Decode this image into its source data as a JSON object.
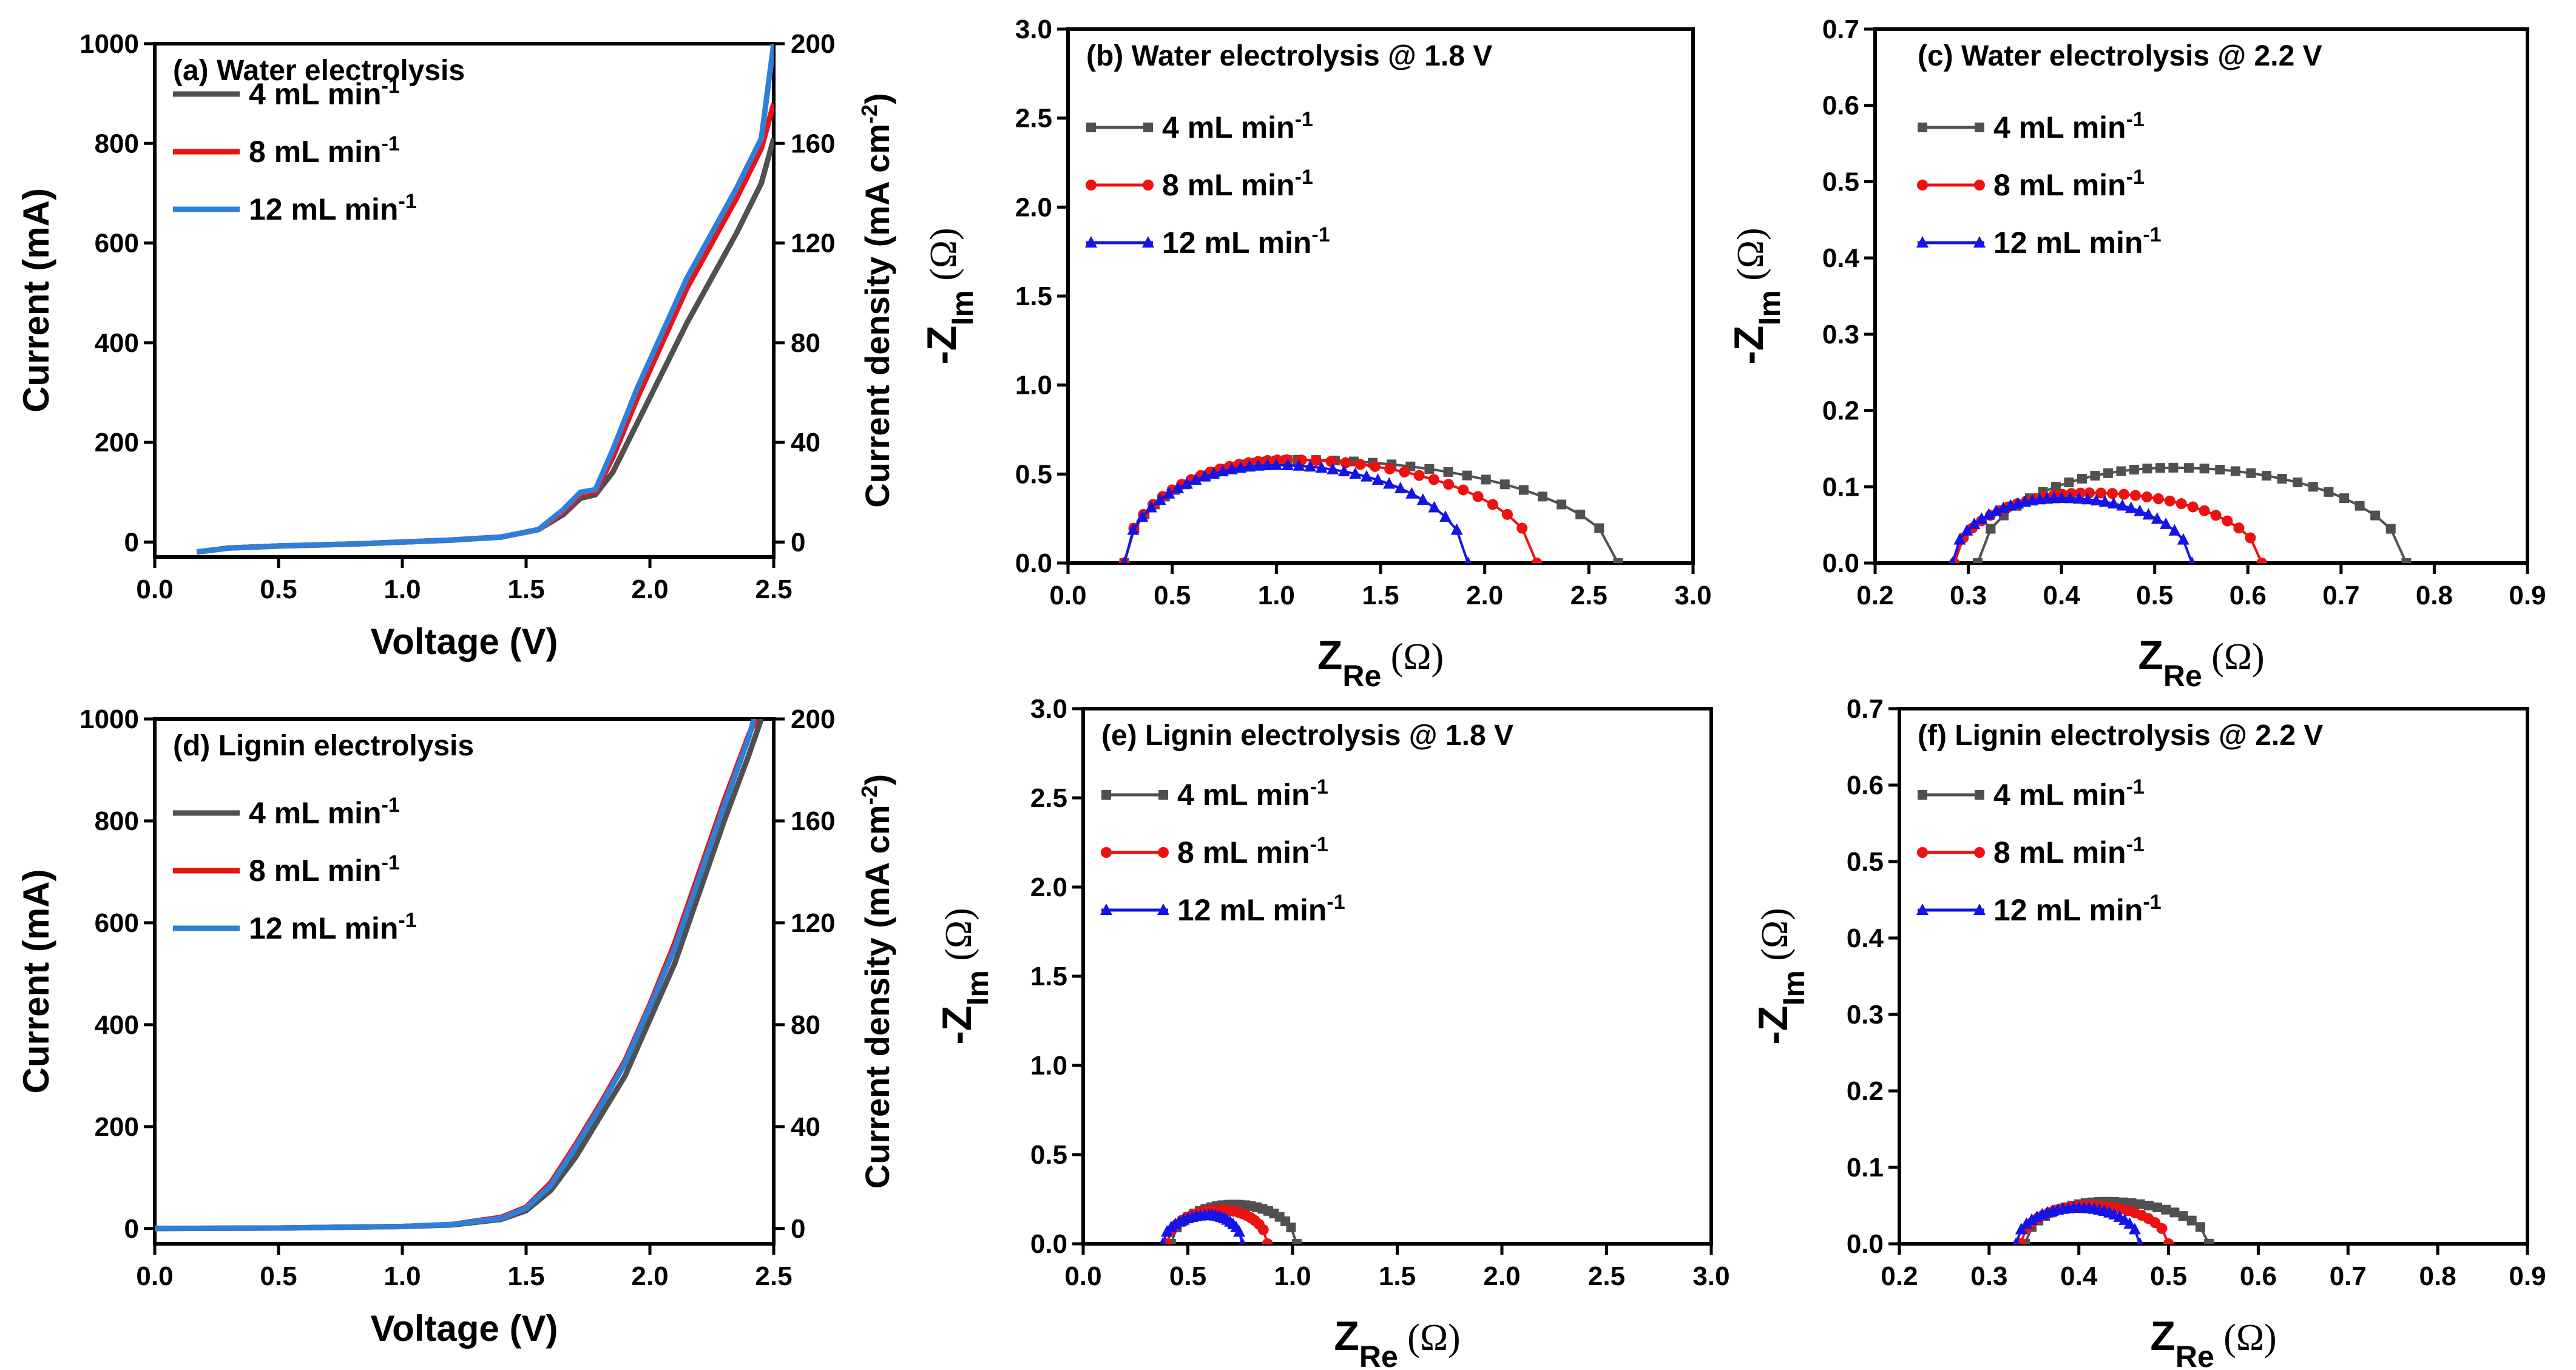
{
  "colors": {
    "four": "#505050",
    "eight": "#ee1111",
    "twelve_lsv": "#2f7fd8",
    "twelve_eis": "#1414e6"
  },
  "legend_units": {
    "base": "mL min",
    "sup": "-1"
  },
  "chart_data": [
    {
      "id": "a",
      "type": "line",
      "title": "(a) Water electrolysis",
      "xlabel": "Voltage (V)",
      "ylabel": "Current (mA)",
      "y2label_base": "Current density (mA cm",
      "y2label_sup": "-2",
      "y2label_end": ")",
      "xlim": [
        0,
        2.5
      ],
      "ylim": [
        -30,
        1000
      ],
      "y2lim": [
        -6,
        200
      ],
      "xticks": [
        "0.0",
        "0.5",
        "1.0",
        "1.5",
        "2.0",
        "2.5"
      ],
      "yticks": [
        "0",
        "200",
        "400",
        "600",
        "800",
        "1000"
      ],
      "y2ticks": [
        "0",
        "40",
        "80",
        "120",
        "160",
        "200"
      ],
      "series": [
        {
          "name": "4 mL min",
          "x": [
            0.17,
            0.3,
            0.5,
            0.8,
            1.0,
            1.2,
            1.4,
            1.55,
            1.65,
            1.72,
            1.78,
            1.85,
            1.95,
            2.05,
            2.15,
            2.25,
            2.35,
            2.45,
            2.5
          ],
          "y": [
            -20,
            -12,
            -8,
            -4,
            0,
            4,
            10,
            25,
            55,
            88,
            95,
            140,
            240,
            340,
            440,
            530,
            620,
            720,
            810
          ]
        },
        {
          "name": "8 mL min",
          "x": [
            0.17,
            0.3,
            0.5,
            0.8,
            1.0,
            1.2,
            1.4,
            1.55,
            1.65,
            1.72,
            1.78,
            1.85,
            1.95,
            2.05,
            2.15,
            2.25,
            2.35,
            2.45,
            2.5
          ],
          "y": [
            -20,
            -12,
            -8,
            -4,
            0,
            4,
            10,
            25,
            60,
            95,
            100,
            170,
            290,
            400,
            510,
            600,
            690,
            790,
            880
          ]
        },
        {
          "name": "12 mL min",
          "x": [
            0.17,
            0.3,
            0.5,
            0.8,
            1.0,
            1.2,
            1.4,
            1.55,
            1.65,
            1.72,
            1.78,
            1.85,
            1.95,
            2.05,
            2.15,
            2.25,
            2.35,
            2.45,
            2.5
          ],
          "y": [
            -20,
            -12,
            -8,
            -4,
            0,
            4,
            10,
            25,
            65,
            100,
            105,
            185,
            310,
            420,
            530,
            620,
            710,
            810,
            1000
          ]
        }
      ]
    },
    {
      "id": "b",
      "type": "scatter",
      "title": "(b) Water electrolysis @ 1.8 V",
      "xlabel_base": "Z",
      "xlabel_sub": "Re",
      "ylabel_base": "-Z",
      "ylabel_sub": "Im",
      "unit": "(Ω)",
      "xlim": [
        0,
        3.0
      ],
      "ylim": [
        0,
        3.0
      ],
      "xticks": [
        "0.0",
        "0.5",
        "1.0",
        "1.5",
        "2.0",
        "2.5",
        "3.0"
      ],
      "yticks": [
        "0.0",
        "0.5",
        "1.0",
        "1.5",
        "2.0",
        "2.5",
        "3.0"
      ],
      "series": [
        {
          "name": "4 mL min",
          "marker": "square",
          "r0": 0.27,
          "r1": 2.64,
          "peak": 0.58,
          "peak_x": 1.1,
          "n": 34
        },
        {
          "name": "8 mL min",
          "marker": "circle",
          "r0": 0.27,
          "r1": 2.25,
          "peak": 0.58,
          "peak_x": 1.05,
          "n": 34
        },
        {
          "name": "12 mL min",
          "marker": "triangle",
          "r0": 0.27,
          "r1": 1.92,
          "peak": 0.55,
          "peak_x": 1.0,
          "n": 34
        }
      ]
    },
    {
      "id": "c",
      "type": "scatter",
      "title": "(c) Water electrolysis @ 2.2 V",
      "xlabel_base": "Z",
      "xlabel_sub": "Re",
      "ylabel_base": "-Z",
      "ylabel_sub": "Im",
      "unit": "(Ω)",
      "xlim": [
        0.2,
        0.9
      ],
      "ylim": [
        0,
        0.7
      ],
      "xticks": [
        "0.2",
        "0.3",
        "0.4",
        "0.5",
        "0.6",
        "0.7",
        "0.8",
        "0.9"
      ],
      "yticks": [
        "0.0",
        "0.1",
        "0.2",
        "0.3",
        "0.4",
        "0.5",
        "0.6",
        "0.7"
      ],
      "series": [
        {
          "name": "4 mL min",
          "marker": "square",
          "r0": 0.31,
          "r1": 0.77,
          "peak": 0.125,
          "peak_x": 0.52,
          "n": 30
        },
        {
          "name": "8 mL min",
          "marker": "circle",
          "r0": 0.285,
          "r1": 0.615,
          "peak": 0.092,
          "peak_x": 0.43,
          "n": 30
        },
        {
          "name": "12 mL min",
          "marker": "triangle",
          "r0": 0.283,
          "r1": 0.54,
          "peak": 0.085,
          "peak_x": 0.4,
          "n": 30
        }
      ]
    },
    {
      "id": "d",
      "type": "line",
      "title": "(d) Lignin electrolysis",
      "xlabel": "Voltage (V)",
      "ylabel": "Current (mA)",
      "y2label_base": "Current density (mA cm",
      "y2label_sup": "-2",
      "y2label_end": ")",
      "xlim": [
        0,
        2.5
      ],
      "ylim": [
        -30,
        1000
      ],
      "y2lim": [
        -6,
        200
      ],
      "xticks": [
        "0.0",
        "0.5",
        "1.0",
        "1.5",
        "2.0",
        "2.5"
      ],
      "yticks": [
        "0",
        "200",
        "400",
        "600",
        "800",
        "1000"
      ],
      "y2ticks": [
        "0",
        "40",
        "80",
        "120",
        "160",
        "200"
      ],
      "series": [
        {
          "name": "4 mL min",
          "x": [
            0.0,
            0.5,
            1.0,
            1.2,
            1.4,
            1.5,
            1.6,
            1.7,
            1.8,
            1.9,
            2.0,
            2.1,
            2.2,
            2.3,
            2.4,
            2.45
          ],
          "y": [
            0,
            1,
            4,
            7,
            18,
            35,
            75,
            140,
            220,
            300,
            410,
            520,
            660,
            800,
            930,
            1000
          ]
        },
        {
          "name": "8 mL min",
          "x": [
            0.0,
            0.5,
            1.0,
            1.2,
            1.4,
            1.5,
            1.6,
            1.7,
            1.8,
            1.9,
            2.0,
            2.1,
            2.2,
            2.3,
            2.4,
            2.43
          ],
          "y": [
            0,
            1,
            4,
            8,
            22,
            42,
            90,
            165,
            245,
            330,
            440,
            560,
            700,
            840,
            970,
            1000
          ]
        },
        {
          "name": "12 mL min",
          "x": [
            0.0,
            0.5,
            1.0,
            1.2,
            1.4,
            1.5,
            1.6,
            1.7,
            1.8,
            1.9,
            2.0,
            2.1,
            2.2,
            2.3,
            2.4,
            2.42
          ],
          "y": [
            0,
            1,
            4,
            8,
            20,
            40,
            85,
            160,
            240,
            325,
            435,
            550,
            690,
            830,
            965,
            1000
          ]
        }
      ]
    },
    {
      "id": "e",
      "type": "scatter",
      "title": "(e) Lignin electrolysis @ 1.8 V",
      "xlabel_base": "Z",
      "xlabel_sub": "Re",
      "ylabel_base": "-Z",
      "ylabel_sub": "Im",
      "unit": "(Ω)",
      "xlim": [
        0,
        3.0
      ],
      "ylim": [
        0,
        3.0
      ],
      "xticks": [
        "0.0",
        "0.5",
        "1.0",
        "1.5",
        "2.0",
        "2.5",
        "3.0"
      ],
      "yticks": [
        "0.0",
        "0.5",
        "1.0",
        "1.5",
        "2.0",
        "2.5",
        "3.0"
      ],
      "series": [
        {
          "name": "4 mL min",
          "marker": "square",
          "r0": 0.42,
          "r1": 1.02,
          "peak": 0.22,
          "peak_x": 0.72,
          "n": 22
        },
        {
          "name": "8 mL min",
          "marker": "circle",
          "r0": 0.4,
          "r1": 0.88,
          "peak": 0.19,
          "peak_x": 0.66,
          "n": 22
        },
        {
          "name": "12 mL min",
          "marker": "triangle",
          "r0": 0.38,
          "r1": 0.76,
          "peak": 0.16,
          "peak_x": 0.6,
          "n": 22
        }
      ]
    },
    {
      "id": "f",
      "type": "scatter",
      "title": "(f) Lignin electrolysis @ 2.2 V",
      "xlabel_base": "Z",
      "xlabel_sub": "Re",
      "ylabel_base": "-Z",
      "ylabel_sub": "Im",
      "unit": "(Ω)",
      "xlim": [
        0.2,
        0.9
      ],
      "ylim": [
        0,
        0.7
      ],
      "xticks": [
        "0.2",
        "0.3",
        "0.4",
        "0.5",
        "0.6",
        "0.7",
        "0.8",
        "0.9"
      ],
      "yticks": [
        "0.0",
        "0.1",
        "0.2",
        "0.3",
        "0.4",
        "0.5",
        "0.6",
        "0.7"
      ],
      "series": [
        {
          "name": "4 mL min",
          "marker": "square",
          "r0": 0.34,
          "r1": 0.545,
          "peak": 0.055,
          "peak_x": 0.43,
          "n": 24
        },
        {
          "name": "8 mL min",
          "marker": "circle",
          "r0": 0.335,
          "r1": 0.5,
          "peak": 0.05,
          "peak_x": 0.41,
          "n": 24
        },
        {
          "name": "12 mL min",
          "marker": "triangle",
          "r0": 0.33,
          "r1": 0.468,
          "peak": 0.047,
          "peak_x": 0.4,
          "n": 24
        }
      ]
    }
  ]
}
